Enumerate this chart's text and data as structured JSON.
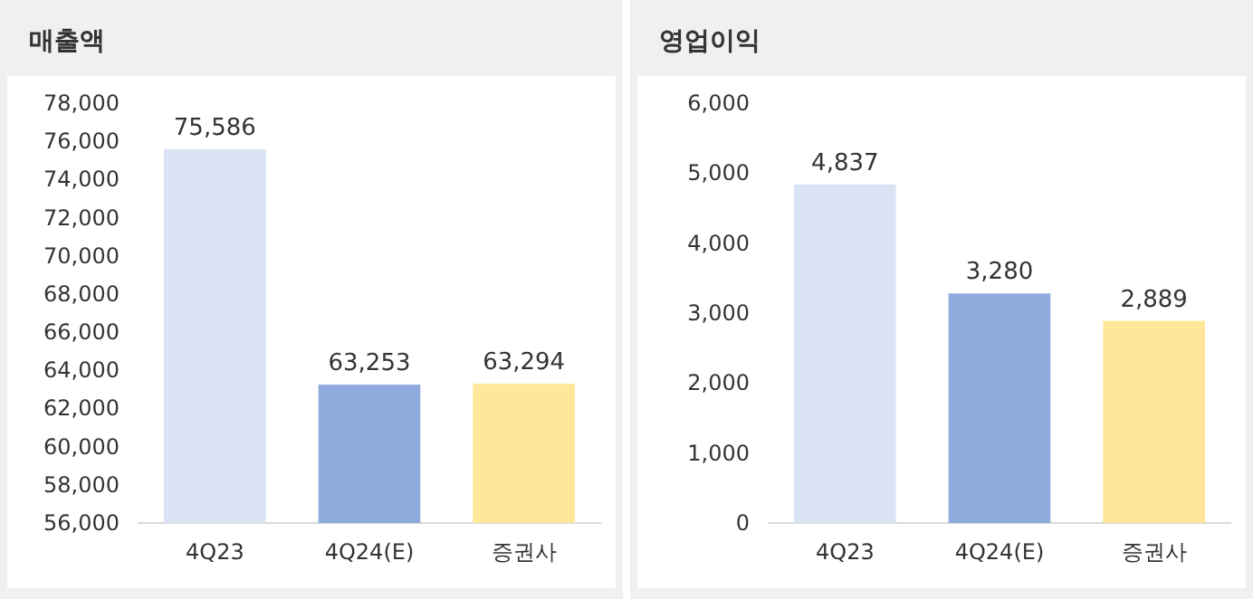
{
  "chart_data": [
    {
      "type": "bar",
      "title": "매출액",
      "categories": [
        "4Q23",
        "4Q24(E)",
        "증권사"
      ],
      "values": [
        75586,
        63253,
        63294
      ],
      "value_labels": [
        "75,586",
        "63,253",
        "63,294"
      ],
      "colors": [
        "#dae3f3",
        "#8faadc",
        "#ffe699"
      ],
      "ylim": [
        56000,
        78000
      ],
      "yticks": [
        {
          "value": 56000,
          "label": "56,000"
        },
        {
          "value": 58000,
          "label": "58,000"
        },
        {
          "value": 60000,
          "label": "60,000"
        },
        {
          "value": 62000,
          "label": "62,000"
        },
        {
          "value": 64000,
          "label": "64,000"
        },
        {
          "value": 66000,
          "label": "66,000"
        },
        {
          "value": 68000,
          "label": "68,000"
        },
        {
          "value": 70000,
          "label": "70,000"
        },
        {
          "value": 72000,
          "label": "72,000"
        },
        {
          "value": 74000,
          "label": "74,000"
        },
        {
          "value": 76000,
          "label": "76,000"
        },
        {
          "value": 78000,
          "label": "78,000"
        }
      ]
    },
    {
      "type": "bar",
      "title": "영업이익",
      "categories": [
        "4Q23",
        "4Q24(E)",
        "증권사"
      ],
      "values": [
        4837,
        3280,
        2889
      ],
      "value_labels": [
        "4,837",
        "3,280",
        "2,889"
      ],
      "colors": [
        "#dae3f3",
        "#8faadc",
        "#ffe699"
      ],
      "ylim": [
        0,
        6000
      ],
      "yticks": [
        0,
        {
          "value": 1000,
          "label": "1,000"
        },
        {
          "value": 2000,
          "label": "2,000"
        },
        {
          "value": 3000,
          "label": "3,000"
        },
        {
          "value": 4000,
          "label": "4,000"
        },
        {
          "value": 5000,
          "label": "5,000"
        },
        {
          "value": 6000,
          "label": "6,000"
        }
      ]
    }
  ]
}
